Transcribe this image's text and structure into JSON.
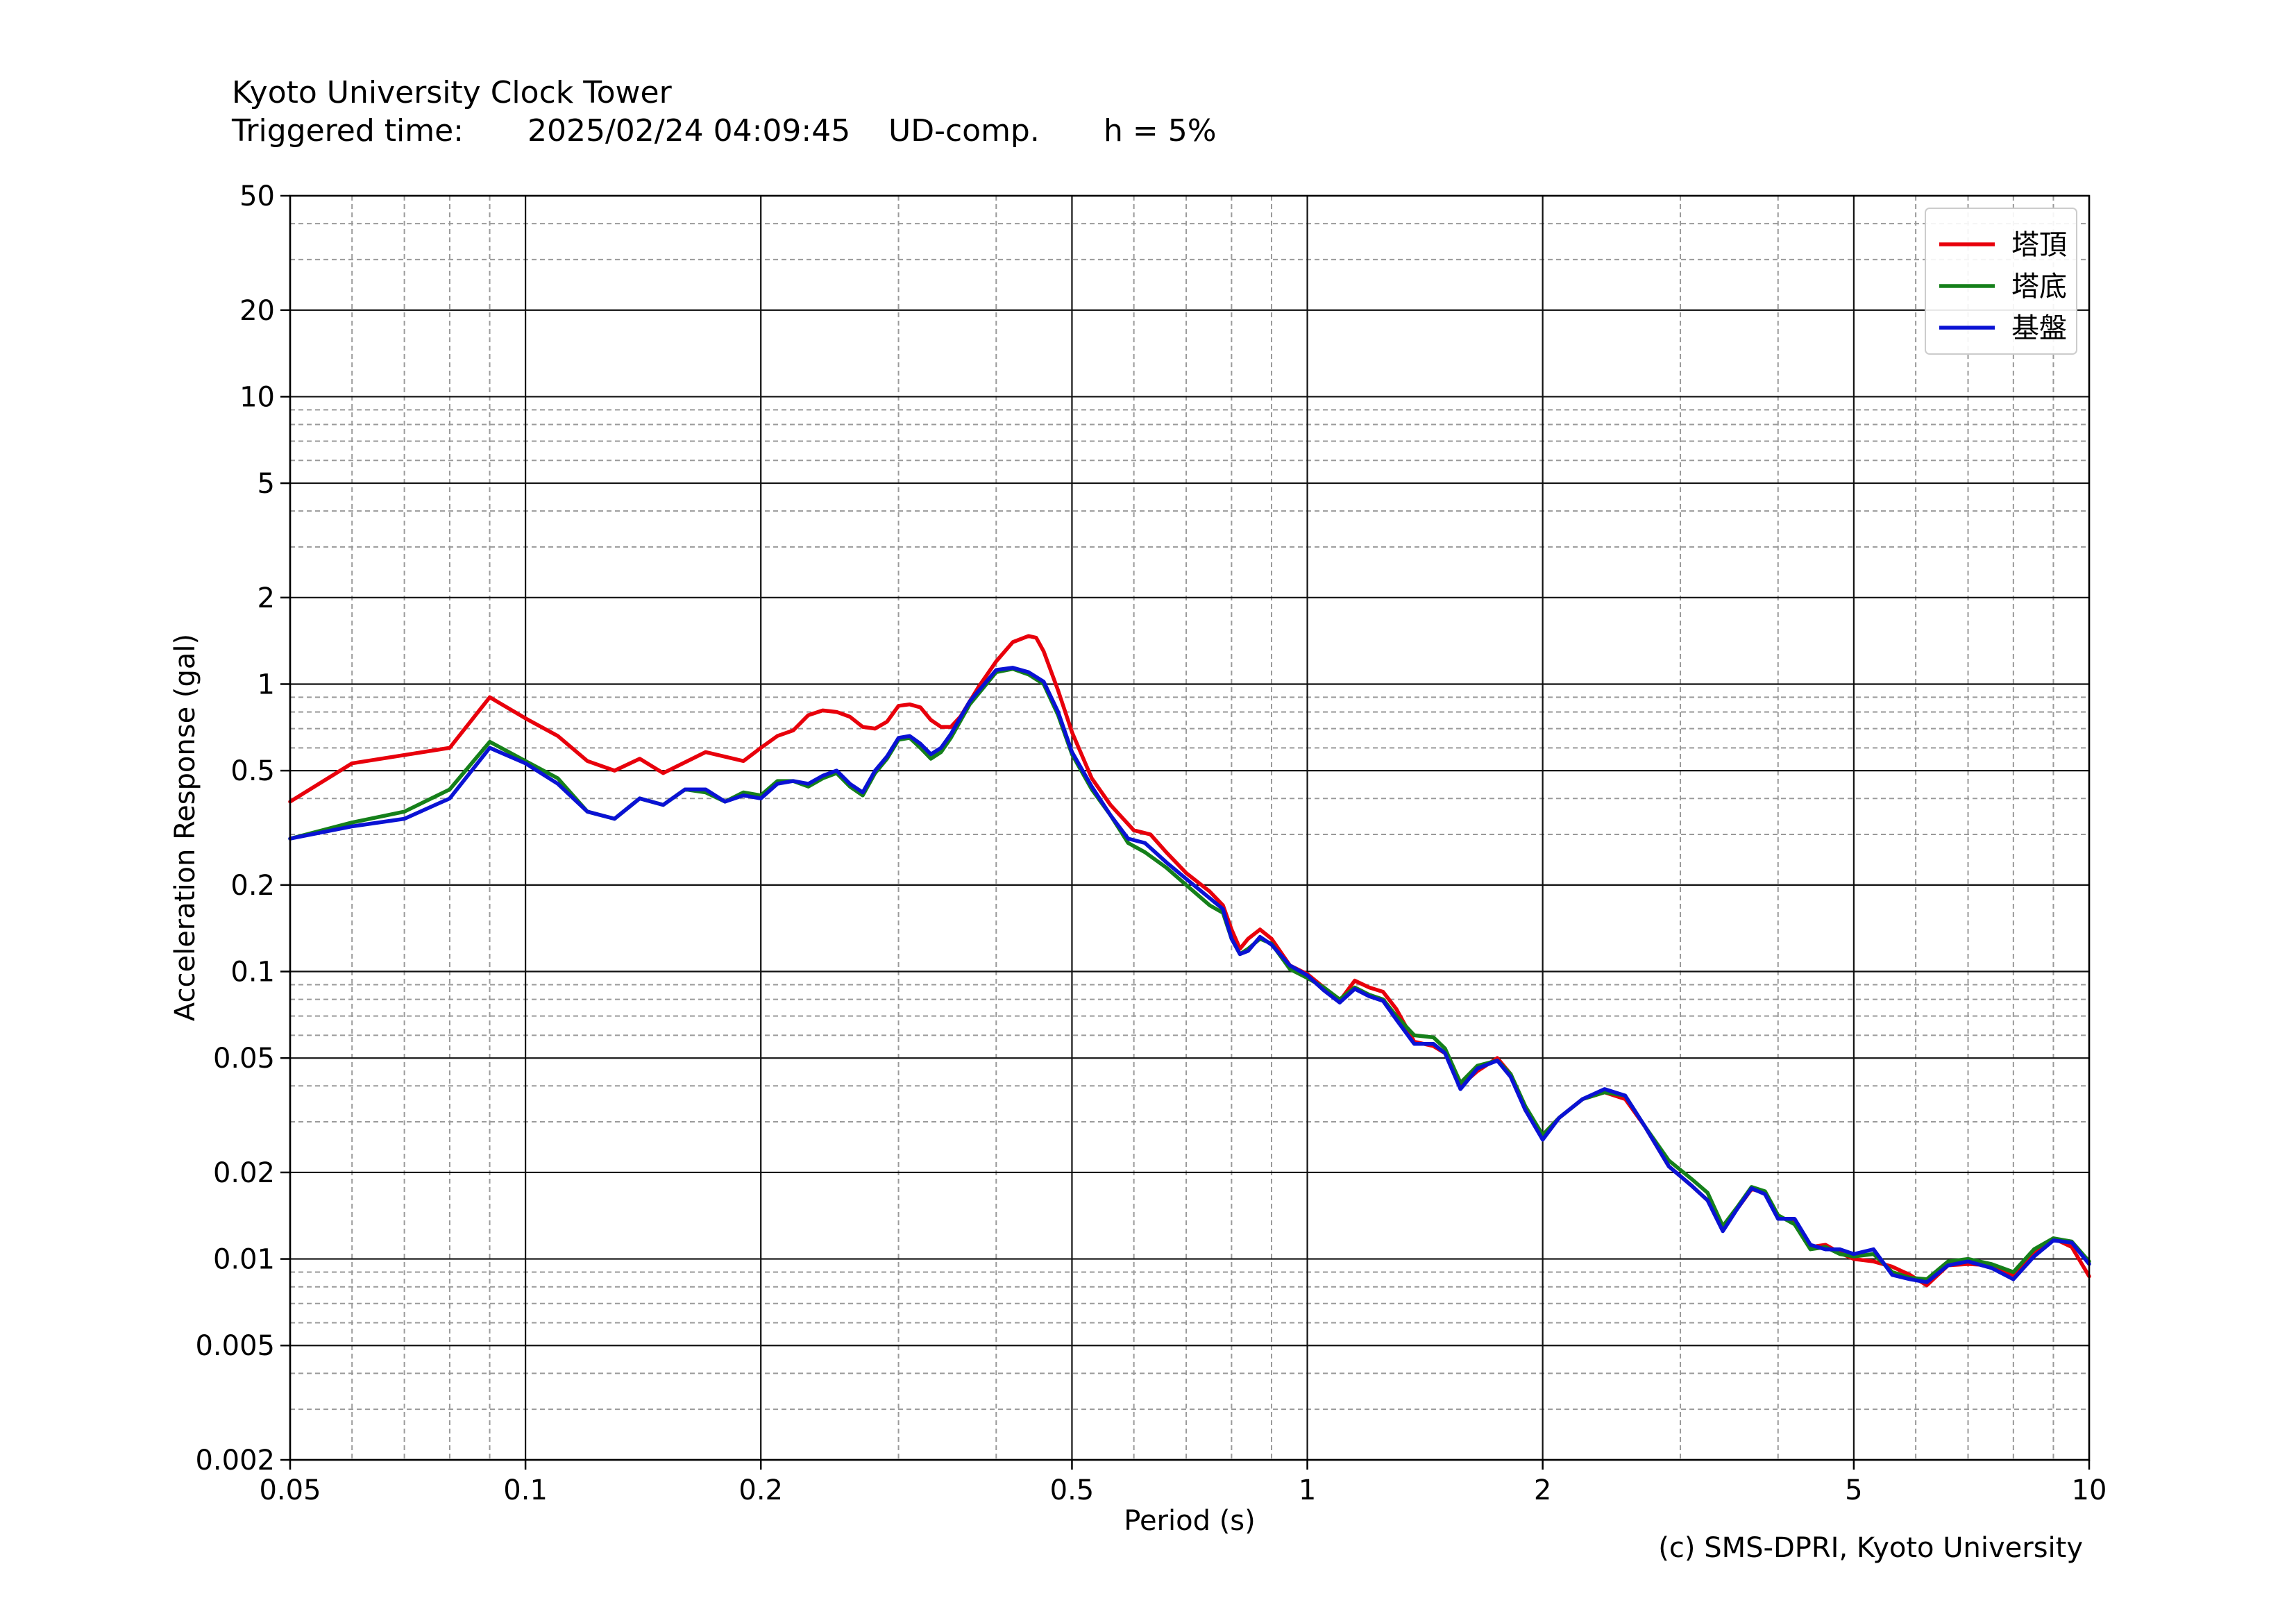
{
  "header": {
    "title": "Kyoto University Clock Tower",
    "triggered_label": "Triggered time:",
    "triggered_time": "2025/02/24 04:09:45",
    "component": "UD-comp.",
    "damping": "h = 5%"
  },
  "footer": {
    "copyright": "(c) SMS-DPRI, Kyoto University"
  },
  "chart_data": {
    "type": "line",
    "xlabel": "Period (s)",
    "ylabel": "Acceleration Response (gal)",
    "xscale": "log",
    "yscale": "log",
    "xlim": [
      0.05,
      10
    ],
    "ylim": [
      0.002,
      50
    ],
    "grid": true,
    "legend_position": "top-right",
    "x_ticks": [
      "0.05",
      "0.1",
      "0.2",
      "0.5",
      "1",
      "2",
      "5",
      "10"
    ],
    "y_ticks": [
      "0.002",
      "0.005",
      "0.01",
      "0.02",
      "0.05",
      "0.1",
      "0.2",
      "0.5",
      "1",
      "2",
      "5",
      "10",
      "20",
      "50"
    ],
    "series": [
      {
        "name": "塔頂",
        "color": "#e8000b",
        "points": [
          [
            0.05,
            0.39
          ],
          [
            0.06,
            0.53
          ],
          [
            0.08,
            0.6
          ],
          [
            0.09,
            0.9
          ],
          [
            0.1,
            0.76
          ],
          [
            0.11,
            0.66
          ],
          [
            0.12,
            0.54
          ],
          [
            0.13,
            0.5
          ],
          [
            0.14,
            0.55
          ],
          [
            0.15,
            0.49
          ],
          [
            0.17,
            0.58
          ],
          [
            0.19,
            0.54
          ],
          [
            0.2,
            0.6
          ],
          [
            0.21,
            0.66
          ],
          [
            0.22,
            0.69
          ],
          [
            0.23,
            0.78
          ],
          [
            0.24,
            0.81
          ],
          [
            0.25,
            0.8
          ],
          [
            0.26,
            0.77
          ],
          [
            0.27,
            0.71
          ],
          [
            0.28,
            0.7
          ],
          [
            0.29,
            0.74
          ],
          [
            0.3,
            0.84
          ],
          [
            0.31,
            0.85
          ],
          [
            0.32,
            0.83
          ],
          [
            0.33,
            0.75
          ],
          [
            0.34,
            0.71
          ],
          [
            0.35,
            0.71
          ],
          [
            0.36,
            0.77
          ],
          [
            0.38,
            0.98
          ],
          [
            0.4,
            1.2
          ],
          [
            0.42,
            1.4
          ],
          [
            0.44,
            1.47
          ],
          [
            0.45,
            1.45
          ],
          [
            0.46,
            1.3
          ],
          [
            0.48,
            0.95
          ],
          [
            0.5,
            0.68
          ],
          [
            0.53,
            0.47
          ],
          [
            0.56,
            0.38
          ],
          [
            0.6,
            0.31
          ],
          [
            0.63,
            0.3
          ],
          [
            0.66,
            0.26
          ],
          [
            0.7,
            0.22
          ],
          [
            0.75,
            0.19
          ],
          [
            0.78,
            0.17
          ],
          [
            0.8,
            0.14
          ],
          [
            0.82,
            0.12
          ],
          [
            0.84,
            0.13
          ],
          [
            0.87,
            0.14
          ],
          [
            0.9,
            0.13
          ],
          [
            0.95,
            0.105
          ],
          [
            1.0,
            0.098
          ],
          [
            1.05,
            0.088
          ],
          [
            1.1,
            0.079
          ],
          [
            1.15,
            0.093
          ],
          [
            1.2,
            0.088
          ],
          [
            1.25,
            0.085
          ],
          [
            1.3,
            0.074
          ],
          [
            1.37,
            0.057
          ],
          [
            1.45,
            0.055
          ],
          [
            1.5,
            0.052
          ],
          [
            1.57,
            0.04
          ],
          [
            1.65,
            0.045
          ],
          [
            1.75,
            0.05
          ],
          [
            1.82,
            0.044
          ],
          [
            1.9,
            0.033
          ],
          [
            2.0,
            0.027
          ],
          [
            2.1,
            0.031
          ],
          [
            2.25,
            0.036
          ],
          [
            2.4,
            0.038
          ],
          [
            2.55,
            0.036
          ],
          [
            2.7,
            0.029
          ],
          [
            2.9,
            0.021
          ],
          [
            3.1,
            0.018
          ],
          [
            3.25,
            0.016
          ],
          [
            3.4,
            0.0128
          ],
          [
            3.55,
            0.015
          ],
          [
            3.7,
            0.0175
          ],
          [
            3.85,
            0.017
          ],
          [
            4.0,
            0.014
          ],
          [
            4.2,
            0.0135
          ],
          [
            4.4,
            0.011
          ],
          [
            4.6,
            0.0112
          ],
          [
            4.8,
            0.0105
          ],
          [
            5.0,
            0.01
          ],
          [
            5.3,
            0.0098
          ],
          [
            5.6,
            0.0094
          ],
          [
            5.9,
            0.0088
          ],
          [
            6.2,
            0.0081
          ],
          [
            6.6,
            0.0095
          ],
          [
            7.0,
            0.0096
          ],
          [
            7.5,
            0.0095
          ],
          [
            8.0,
            0.0088
          ],
          [
            8.5,
            0.0105
          ],
          [
            9.0,
            0.0118
          ],
          [
            9.5,
            0.011
          ],
          [
            10.0,
            0.0087
          ]
        ]
      },
      {
        "name": "塔底",
        "color": "#15801a",
        "points": [
          [
            0.05,
            0.29
          ],
          [
            0.06,
            0.33
          ],
          [
            0.07,
            0.36
          ],
          [
            0.08,
            0.43
          ],
          [
            0.09,
            0.63
          ],
          [
            0.1,
            0.54
          ],
          [
            0.11,
            0.47
          ],
          [
            0.12,
            0.36
          ],
          [
            0.13,
            0.34
          ],
          [
            0.14,
            0.4
          ],
          [
            0.15,
            0.38
          ],
          [
            0.16,
            0.43
          ],
          [
            0.17,
            0.42
          ],
          [
            0.18,
            0.39
          ],
          [
            0.19,
            0.42
          ],
          [
            0.2,
            0.41
          ],
          [
            0.21,
            0.46
          ],
          [
            0.22,
            0.46
          ],
          [
            0.23,
            0.44
          ],
          [
            0.24,
            0.47
          ],
          [
            0.25,
            0.49
          ],
          [
            0.26,
            0.44
          ],
          [
            0.27,
            0.41
          ],
          [
            0.28,
            0.49
          ],
          [
            0.29,
            0.55
          ],
          [
            0.3,
            0.64
          ],
          [
            0.31,
            0.65
          ],
          [
            0.32,
            0.6
          ],
          [
            0.33,
            0.55
          ],
          [
            0.34,
            0.58
          ],
          [
            0.35,
            0.65
          ],
          [
            0.37,
            0.85
          ],
          [
            0.4,
            1.1
          ],
          [
            0.42,
            1.13
          ],
          [
            0.44,
            1.08
          ],
          [
            0.46,
            1.0
          ],
          [
            0.48,
            0.78
          ],
          [
            0.5,
            0.57
          ],
          [
            0.53,
            0.43
          ],
          [
            0.56,
            0.35
          ],
          [
            0.59,
            0.28
          ],
          [
            0.62,
            0.26
          ],
          [
            0.66,
            0.23
          ],
          [
            0.7,
            0.2
          ],
          [
            0.75,
            0.17
          ],
          [
            0.78,
            0.16
          ],
          [
            0.8,
            0.13
          ],
          [
            0.82,
            0.115
          ],
          [
            0.84,
            0.12
          ],
          [
            0.87,
            0.13
          ],
          [
            0.9,
            0.125
          ],
          [
            0.95,
            0.102
          ],
          [
            1.0,
            0.095
          ],
          [
            1.05,
            0.088
          ],
          [
            1.1,
            0.08
          ],
          [
            1.15,
            0.088
          ],
          [
            1.2,
            0.083
          ],
          [
            1.25,
            0.08
          ],
          [
            1.3,
            0.07
          ],
          [
            1.37,
            0.06
          ],
          [
            1.45,
            0.059
          ],
          [
            1.5,
            0.054
          ],
          [
            1.57,
            0.041
          ],
          [
            1.65,
            0.047
          ],
          [
            1.75,
            0.049
          ],
          [
            1.82,
            0.044
          ],
          [
            1.9,
            0.034
          ],
          [
            2.0,
            0.027
          ],
          [
            2.1,
            0.031
          ],
          [
            2.25,
            0.036
          ],
          [
            2.4,
            0.038
          ],
          [
            2.55,
            0.037
          ],
          [
            2.7,
            0.029
          ],
          [
            2.9,
            0.022
          ],
          [
            3.1,
            0.019
          ],
          [
            3.25,
            0.017
          ],
          [
            3.4,
            0.013
          ],
          [
            3.55,
            0.0152
          ],
          [
            3.7,
            0.0178
          ],
          [
            3.85,
            0.0172
          ],
          [
            4.0,
            0.0142
          ],
          [
            4.2,
            0.0132
          ],
          [
            4.4,
            0.0108
          ],
          [
            4.6,
            0.011
          ],
          [
            4.8,
            0.0104
          ],
          [
            5.0,
            0.0102
          ],
          [
            5.3,
            0.0104
          ],
          [
            5.6,
            0.009
          ],
          [
            5.9,
            0.0086
          ],
          [
            6.2,
            0.0085
          ],
          [
            6.6,
            0.0098
          ],
          [
            7.0,
            0.01
          ],
          [
            7.5,
            0.0096
          ],
          [
            8.0,
            0.009
          ],
          [
            8.5,
            0.0108
          ],
          [
            9.0,
            0.0118
          ],
          [
            9.5,
            0.0115
          ],
          [
            10.0,
            0.0098
          ]
        ]
      },
      {
        "name": "基盤",
        "color": "#0a12d4",
        "points": [
          [
            0.05,
            0.29
          ],
          [
            0.06,
            0.32
          ],
          [
            0.07,
            0.34
          ],
          [
            0.08,
            0.4
          ],
          [
            0.09,
            0.6
          ],
          [
            0.1,
            0.53
          ],
          [
            0.11,
            0.45
          ],
          [
            0.12,
            0.36
          ],
          [
            0.13,
            0.34
          ],
          [
            0.14,
            0.4
          ],
          [
            0.15,
            0.38
          ],
          [
            0.16,
            0.43
          ],
          [
            0.17,
            0.43
          ],
          [
            0.18,
            0.39
          ],
          [
            0.19,
            0.41
          ],
          [
            0.2,
            0.4
          ],
          [
            0.21,
            0.45
          ],
          [
            0.22,
            0.46
          ],
          [
            0.23,
            0.45
          ],
          [
            0.24,
            0.48
          ],
          [
            0.25,
            0.5
          ],
          [
            0.26,
            0.45
          ],
          [
            0.27,
            0.42
          ],
          [
            0.28,
            0.5
          ],
          [
            0.29,
            0.56
          ],
          [
            0.3,
            0.65
          ],
          [
            0.31,
            0.66
          ],
          [
            0.32,
            0.62
          ],
          [
            0.33,
            0.57
          ],
          [
            0.34,
            0.6
          ],
          [
            0.35,
            0.67
          ],
          [
            0.37,
            0.87
          ],
          [
            0.4,
            1.12
          ],
          [
            0.42,
            1.14
          ],
          [
            0.44,
            1.1
          ],
          [
            0.46,
            1.02
          ],
          [
            0.48,
            0.8
          ],
          [
            0.5,
            0.58
          ],
          [
            0.53,
            0.44
          ],
          [
            0.56,
            0.35
          ],
          [
            0.59,
            0.29
          ],
          [
            0.62,
            0.28
          ],
          [
            0.66,
            0.24
          ],
          [
            0.7,
            0.21
          ],
          [
            0.75,
            0.18
          ],
          [
            0.78,
            0.165
          ],
          [
            0.8,
            0.13
          ],
          [
            0.82,
            0.115
          ],
          [
            0.84,
            0.118
          ],
          [
            0.87,
            0.132
          ],
          [
            0.9,
            0.124
          ],
          [
            0.95,
            0.105
          ],
          [
            1.0,
            0.097
          ],
          [
            1.05,
            0.086
          ],
          [
            1.1,
            0.078
          ],
          [
            1.15,
            0.087
          ],
          [
            1.2,
            0.082
          ],
          [
            1.25,
            0.079
          ],
          [
            1.3,
            0.068
          ],
          [
            1.37,
            0.056
          ],
          [
            1.45,
            0.056
          ],
          [
            1.5,
            0.052
          ],
          [
            1.57,
            0.039
          ],
          [
            1.65,
            0.046
          ],
          [
            1.75,
            0.049
          ],
          [
            1.82,
            0.043
          ],
          [
            1.9,
            0.033
          ],
          [
            2.0,
            0.026
          ],
          [
            2.1,
            0.031
          ],
          [
            2.25,
            0.036
          ],
          [
            2.4,
            0.039
          ],
          [
            2.55,
            0.037
          ],
          [
            2.7,
            0.029
          ],
          [
            2.9,
            0.021
          ],
          [
            3.1,
            0.018
          ],
          [
            3.25,
            0.016
          ],
          [
            3.4,
            0.0125
          ],
          [
            3.55,
            0.015
          ],
          [
            3.7,
            0.0176
          ],
          [
            3.85,
            0.0168
          ],
          [
            4.0,
            0.0138
          ],
          [
            4.2,
            0.0138
          ],
          [
            4.4,
            0.0112
          ],
          [
            4.6,
            0.0108
          ],
          [
            4.8,
            0.0108
          ],
          [
            5.0,
            0.0104
          ],
          [
            5.3,
            0.0108
          ],
          [
            5.6,
            0.0088
          ],
          [
            5.9,
            0.0085
          ],
          [
            6.2,
            0.0083
          ],
          [
            6.6,
            0.0095
          ],
          [
            7.0,
            0.0098
          ],
          [
            7.5,
            0.0093
          ],
          [
            8.0,
            0.0085
          ],
          [
            8.5,
            0.0102
          ],
          [
            9.0,
            0.0116
          ],
          [
            9.5,
            0.0114
          ],
          [
            10.0,
            0.0096
          ]
        ]
      }
    ]
  }
}
